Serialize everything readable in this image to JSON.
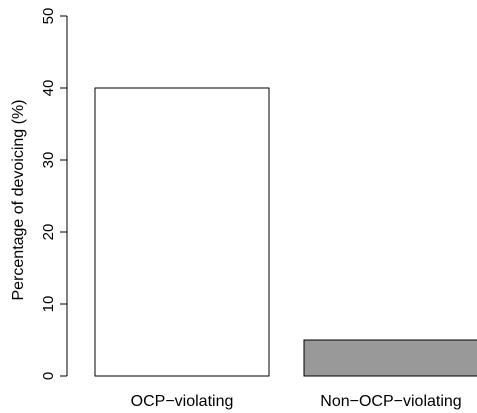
{
  "chart_data": {
    "type": "bar",
    "categories": [
      "OCP−violating",
      "Non−OCP−violating"
    ],
    "values": [
      40,
      5
    ],
    "bar_colors": [
      "#ffffff",
      "#999999"
    ],
    "bar_edge_color": "#000000",
    "title": "",
    "xlabel": "",
    "ylabel": "Percentage of devoicing (%)",
    "ylim": [
      0,
      50
    ],
    "yticks": [
      0,
      10,
      20,
      30,
      40,
      50
    ],
    "grid": false
  }
}
